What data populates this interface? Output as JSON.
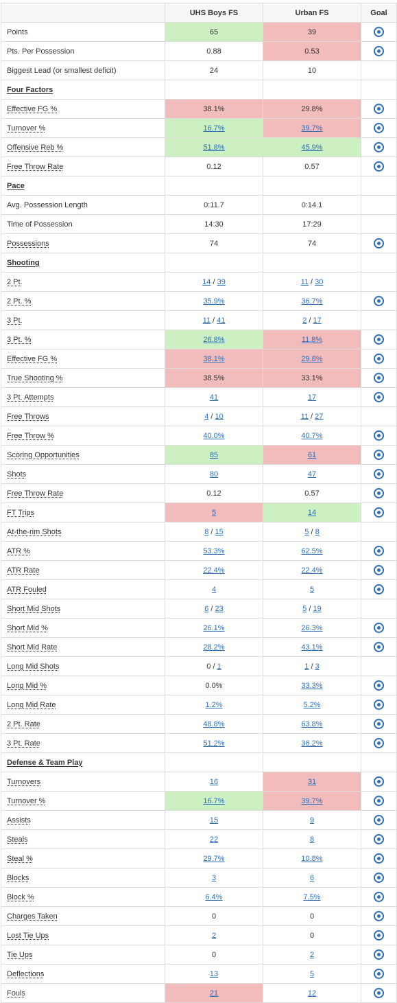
{
  "headers": {
    "stat": "",
    "team_a": "UHS Boys FS",
    "team_b": "Urban FS",
    "goal": "Goal"
  },
  "colors": {
    "good": "#ccf0c2",
    "bad": "#f2bcbc",
    "link": "#2a6ebb"
  },
  "rows": [
    {
      "type": "stat",
      "label": "Points",
      "a": {
        "text": "65",
        "bg": "green"
      },
      "b": {
        "text": "39",
        "bg": "red"
      },
      "goal": true
    },
    {
      "type": "stat",
      "label": "Pts. Per Possession",
      "a": {
        "text": "0.88"
      },
      "b": {
        "text": "0.53",
        "bg": "red"
      },
      "goal": true
    },
    {
      "type": "stat",
      "label": "Biggest Lead (or smallest deficit)",
      "a": {
        "text": "24"
      },
      "b": {
        "text": "10"
      },
      "goal": false
    },
    {
      "type": "section",
      "label": "Four Factors"
    },
    {
      "type": "stat",
      "label": "Effective FG %",
      "ul": true,
      "a": {
        "text": "38.1%",
        "bg": "red"
      },
      "b": {
        "text": "29.8%",
        "bg": "red"
      },
      "goal": true
    },
    {
      "type": "stat",
      "label": "Turnover %",
      "ul": true,
      "a": {
        "parts": [
          {
            "t": "16.7%",
            "link": true
          }
        ],
        "bg": "green"
      },
      "b": {
        "parts": [
          {
            "t": "39.7%",
            "link": true
          }
        ],
        "bg": "red"
      },
      "goal": true
    },
    {
      "type": "stat",
      "label": "Offensive Reb %",
      "ul": true,
      "a": {
        "parts": [
          {
            "t": "51.8%",
            "link": true
          }
        ],
        "bg": "green"
      },
      "b": {
        "parts": [
          {
            "t": "45.9%",
            "link": true
          }
        ],
        "bg": "green"
      },
      "goal": true
    },
    {
      "type": "stat",
      "label": "Free Throw Rate",
      "ul": true,
      "a": {
        "text": "0.12"
      },
      "b": {
        "text": "0.57"
      },
      "goal": true
    },
    {
      "type": "section",
      "label": "Pace"
    },
    {
      "type": "stat",
      "label": "Avg. Possession Length",
      "a": {
        "text": "0:11.7"
      },
      "b": {
        "text": "0:14.1"
      },
      "goal": false
    },
    {
      "type": "stat",
      "label": "Time of Possession",
      "a": {
        "text": "14:30"
      },
      "b": {
        "text": "17:29"
      },
      "goal": false
    },
    {
      "type": "stat",
      "label": "Possessions",
      "ul": true,
      "a": {
        "text": "74"
      },
      "b": {
        "text": "74"
      },
      "goal": true
    },
    {
      "type": "section",
      "label": "Shooting"
    },
    {
      "type": "stat",
      "label": "2 Pt.",
      "ul": true,
      "a": {
        "parts": [
          {
            "t": "14",
            "link": true
          },
          {
            "t": " / "
          },
          {
            "t": "39",
            "link": true
          }
        ]
      },
      "b": {
        "parts": [
          {
            "t": "11",
            "link": true
          },
          {
            "t": " / "
          },
          {
            "t": "30",
            "link": true
          }
        ]
      },
      "goal": false
    },
    {
      "type": "stat",
      "label": "2 Pt. %",
      "ul": true,
      "a": {
        "parts": [
          {
            "t": "35.9%",
            "link": true
          }
        ]
      },
      "b": {
        "parts": [
          {
            "t": "36.7%",
            "link": true
          }
        ]
      },
      "goal": true
    },
    {
      "type": "stat",
      "label": "3 Pt.",
      "ul": true,
      "a": {
        "parts": [
          {
            "t": "11",
            "link": true
          },
          {
            "t": " / "
          },
          {
            "t": "41",
            "link": true
          }
        ]
      },
      "b": {
        "parts": [
          {
            "t": "2",
            "link": true
          },
          {
            "t": " / "
          },
          {
            "t": "17",
            "link": true
          }
        ]
      },
      "goal": false
    },
    {
      "type": "stat",
      "label": "3 Pt. %",
      "ul": true,
      "a": {
        "parts": [
          {
            "t": "26.8%",
            "link": true
          }
        ],
        "bg": "green"
      },
      "b": {
        "parts": [
          {
            "t": "11.8%",
            "link": true
          }
        ],
        "bg": "red"
      },
      "goal": true
    },
    {
      "type": "stat",
      "label": "Effective FG %",
      "ul": true,
      "a": {
        "parts": [
          {
            "t": "38.1%",
            "link": true
          }
        ],
        "bg": "red"
      },
      "b": {
        "parts": [
          {
            "t": "29.8%",
            "link": true
          }
        ],
        "bg": "red"
      },
      "goal": true
    },
    {
      "type": "stat",
      "label": "True Shooting %",
      "ul": true,
      "a": {
        "text": "38.5%",
        "bg": "red"
      },
      "b": {
        "text": "33.1%",
        "bg": "red"
      },
      "goal": true
    },
    {
      "type": "stat",
      "label": "3 Pt. Attempts",
      "ul": true,
      "a": {
        "parts": [
          {
            "t": "41",
            "link": true
          }
        ]
      },
      "b": {
        "parts": [
          {
            "t": "17",
            "link": true
          }
        ]
      },
      "goal": true
    },
    {
      "type": "stat",
      "label": "Free Throws",
      "ul": true,
      "a": {
        "parts": [
          {
            "t": "4",
            "link": true
          },
          {
            "t": " / "
          },
          {
            "t": "10",
            "link": true
          }
        ]
      },
      "b": {
        "parts": [
          {
            "t": "11",
            "link": true
          },
          {
            "t": " / "
          },
          {
            "t": "27",
            "link": true
          }
        ]
      },
      "goal": false
    },
    {
      "type": "stat",
      "label": "Free Throw %",
      "ul": true,
      "a": {
        "parts": [
          {
            "t": "40.0%",
            "link": true
          }
        ]
      },
      "b": {
        "parts": [
          {
            "t": "40.7%",
            "link": true
          }
        ]
      },
      "goal": true
    },
    {
      "type": "stat",
      "label": "Scoring Opportunities",
      "ul": true,
      "a": {
        "parts": [
          {
            "t": "85",
            "link": true
          }
        ],
        "bg": "green"
      },
      "b": {
        "parts": [
          {
            "t": "61",
            "link": true
          }
        ],
        "bg": "red"
      },
      "goal": true
    },
    {
      "type": "stat",
      "label": "Shots",
      "ul": true,
      "a": {
        "parts": [
          {
            "t": "80",
            "link": true
          }
        ]
      },
      "b": {
        "parts": [
          {
            "t": "47",
            "link": true
          }
        ]
      },
      "goal": true
    },
    {
      "type": "stat",
      "label": "Free Throw Rate",
      "ul": true,
      "a": {
        "text": "0.12"
      },
      "b": {
        "text": "0.57"
      },
      "goal": true
    },
    {
      "type": "stat",
      "label": "FT Trips",
      "ul": true,
      "a": {
        "parts": [
          {
            "t": "5",
            "link": true
          }
        ],
        "bg": "red"
      },
      "b": {
        "parts": [
          {
            "t": "14",
            "link": true
          }
        ],
        "bg": "green"
      },
      "goal": true
    },
    {
      "type": "stat",
      "label": "At-the-rim Shots",
      "ul": true,
      "a": {
        "parts": [
          {
            "t": "8",
            "link": true
          },
          {
            "t": " / "
          },
          {
            "t": "15",
            "link": true
          }
        ]
      },
      "b": {
        "parts": [
          {
            "t": "5",
            "link": true
          },
          {
            "t": " / "
          },
          {
            "t": "8",
            "link": true
          }
        ]
      },
      "goal": false
    },
    {
      "type": "stat",
      "label": "ATR %",
      "ul": true,
      "a": {
        "parts": [
          {
            "t": "53.3%",
            "link": true
          }
        ]
      },
      "b": {
        "parts": [
          {
            "t": "62.5%",
            "link": true
          }
        ]
      },
      "goal": true
    },
    {
      "type": "stat",
      "label": "ATR Rate",
      "ul": true,
      "a": {
        "parts": [
          {
            "t": "22.4%",
            "link": true
          }
        ]
      },
      "b": {
        "parts": [
          {
            "t": "22.4%",
            "link": true
          }
        ]
      },
      "goal": true
    },
    {
      "type": "stat",
      "label": "ATR Fouled",
      "ul": true,
      "a": {
        "parts": [
          {
            "t": "4",
            "link": true
          }
        ]
      },
      "b": {
        "parts": [
          {
            "t": "5",
            "link": true
          }
        ]
      },
      "goal": true
    },
    {
      "type": "stat",
      "label": "Short Mid Shots",
      "ul": true,
      "a": {
        "parts": [
          {
            "t": "6",
            "link": true
          },
          {
            "t": " / "
          },
          {
            "t": "23",
            "link": true
          }
        ]
      },
      "b": {
        "parts": [
          {
            "t": "5",
            "link": true
          },
          {
            "t": " / "
          },
          {
            "t": "19",
            "link": true
          }
        ]
      },
      "goal": false
    },
    {
      "type": "stat",
      "label": "Short Mid %",
      "ul": true,
      "a": {
        "parts": [
          {
            "t": "26.1%",
            "link": true
          }
        ]
      },
      "b": {
        "parts": [
          {
            "t": "26.3%",
            "link": true
          }
        ]
      },
      "goal": true
    },
    {
      "type": "stat",
      "label": "Short Mid Rate",
      "ul": true,
      "a": {
        "parts": [
          {
            "t": "28.2%",
            "link": true
          }
        ]
      },
      "b": {
        "parts": [
          {
            "t": "43.1%",
            "link": true
          }
        ]
      },
      "goal": true
    },
    {
      "type": "stat",
      "label": "Long Mid Shots",
      "ul": true,
      "a": {
        "parts": [
          {
            "t": "0 / "
          },
          {
            "t": "1",
            "link": true
          }
        ]
      },
      "b": {
        "parts": [
          {
            "t": "1",
            "link": true
          },
          {
            "t": " / "
          },
          {
            "t": "3",
            "link": true
          }
        ]
      },
      "goal": false
    },
    {
      "type": "stat",
      "label": "Long Mid %",
      "ul": true,
      "a": {
        "text": "0.0%"
      },
      "b": {
        "parts": [
          {
            "t": "33.3%",
            "link": true
          }
        ]
      },
      "goal": true
    },
    {
      "type": "stat",
      "label": "Long Mid Rate",
      "ul": true,
      "a": {
        "parts": [
          {
            "t": "1.2%",
            "link": true
          }
        ]
      },
      "b": {
        "parts": [
          {
            "t": "5.2%",
            "link": true
          }
        ]
      },
      "goal": true
    },
    {
      "type": "stat",
      "label": "2 Pt. Rate",
      "ul": true,
      "a": {
        "parts": [
          {
            "t": "48.8%",
            "link": true
          }
        ]
      },
      "b": {
        "parts": [
          {
            "t": "63.8%",
            "link": true
          }
        ]
      },
      "goal": true
    },
    {
      "type": "stat",
      "label": "3 Pt. Rate",
      "ul": true,
      "a": {
        "parts": [
          {
            "t": "51.2%",
            "link": true
          }
        ]
      },
      "b": {
        "parts": [
          {
            "t": "36.2%",
            "link": true
          }
        ]
      },
      "goal": true
    },
    {
      "type": "section",
      "label": "Defense & Team Play"
    },
    {
      "type": "stat",
      "label": "Turnovers",
      "ul": true,
      "a": {
        "parts": [
          {
            "t": "16",
            "link": true
          }
        ]
      },
      "b": {
        "parts": [
          {
            "t": "31",
            "link": true
          }
        ],
        "bg": "red"
      },
      "goal": true
    },
    {
      "type": "stat",
      "label": "Turnover %",
      "ul": true,
      "a": {
        "parts": [
          {
            "t": "16.7%",
            "link": true
          }
        ],
        "bg": "green"
      },
      "b": {
        "parts": [
          {
            "t": "39.7%",
            "link": true
          }
        ],
        "bg": "red"
      },
      "goal": true
    },
    {
      "type": "stat",
      "label": "Assists",
      "ul": true,
      "a": {
        "parts": [
          {
            "t": "15",
            "link": true
          }
        ]
      },
      "b": {
        "parts": [
          {
            "t": "9",
            "link": true
          }
        ]
      },
      "goal": true
    },
    {
      "type": "stat",
      "label": "Steals",
      "ul": true,
      "a": {
        "parts": [
          {
            "t": "22",
            "link": true
          }
        ]
      },
      "b": {
        "parts": [
          {
            "t": "8",
            "link": true
          }
        ]
      },
      "goal": true
    },
    {
      "type": "stat",
      "label": "Steal %",
      "ul": true,
      "a": {
        "parts": [
          {
            "t": "29.7%",
            "link": true
          }
        ]
      },
      "b": {
        "parts": [
          {
            "t": "10.8%",
            "link": true
          }
        ]
      },
      "goal": true
    },
    {
      "type": "stat",
      "label": "Blocks",
      "ul": true,
      "a": {
        "parts": [
          {
            "t": "3",
            "link": true
          }
        ]
      },
      "b": {
        "parts": [
          {
            "t": "6",
            "link": true
          }
        ]
      },
      "goal": true
    },
    {
      "type": "stat",
      "label": "Block %",
      "ul": true,
      "a": {
        "parts": [
          {
            "t": "6.4%",
            "link": true
          }
        ]
      },
      "b": {
        "parts": [
          {
            "t": "7.5%",
            "link": true
          }
        ]
      },
      "goal": true
    },
    {
      "type": "stat",
      "label": "Charges Taken",
      "ul": true,
      "a": {
        "text": "0"
      },
      "b": {
        "text": "0"
      },
      "goal": true
    },
    {
      "type": "stat",
      "label": "Lost Tie Ups",
      "ul": true,
      "a": {
        "parts": [
          {
            "t": "2",
            "link": true
          }
        ]
      },
      "b": {
        "text": "0"
      },
      "goal": true
    },
    {
      "type": "stat",
      "label": "Tie Ups",
      "ul": true,
      "a": {
        "text": "0"
      },
      "b": {
        "parts": [
          {
            "t": "2",
            "link": true
          }
        ]
      },
      "goal": true
    },
    {
      "type": "stat",
      "label": "Deflections",
      "ul": true,
      "a": {
        "parts": [
          {
            "t": "13",
            "link": true
          }
        ]
      },
      "b": {
        "parts": [
          {
            "t": "5",
            "link": true
          }
        ]
      },
      "goal": true
    },
    {
      "type": "stat",
      "label": "Fouls",
      "ul": true,
      "a": {
        "parts": [
          {
            "t": "21",
            "link": true
          }
        ],
        "bg": "red"
      },
      "b": {
        "parts": [
          {
            "t": "12",
            "link": true
          }
        ]
      },
      "goal": true
    }
  ]
}
